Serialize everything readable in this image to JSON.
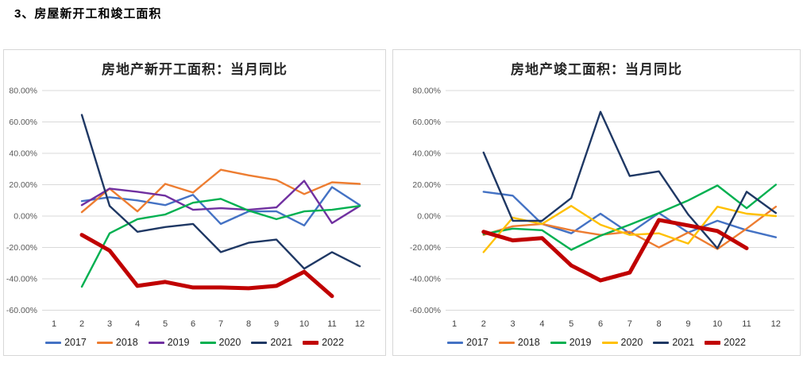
{
  "page": {
    "heading": "3、房屋新开工和竣工面积"
  },
  "axis": {
    "y_ticks": [
      "80.00%",
      "60.00%",
      "40.00%",
      "20.00%",
      "0.00%",
      "-20.00%",
      "-40.00%",
      "-60.00%"
    ],
    "x_ticks": [
      "1",
      "2",
      "3",
      "4",
      "5",
      "6",
      "7",
      "8",
      "9",
      "10",
      "11",
      "12"
    ]
  },
  "grid_color": "#d9d9d9",
  "tick_color": "#595959",
  "chart_data": [
    {
      "type": "line",
      "title": "房地产新开工面积：当月同比",
      "ylim": [
        -60,
        80
      ],
      "grid": true,
      "legend_position": "bottom",
      "x": [
        1,
        2,
        3,
        4,
        5,
        6,
        7,
        8,
        9,
        10,
        11,
        12
      ],
      "start_month": 2,
      "series": [
        {
          "name": "2017",
          "color": "#4472C4",
          "width": 2.4,
          "values": [
            9.5,
            12,
            10,
            7,
            13.5,
            -5,
            3,
            3,
            -6,
            18.5,
            7
          ]
        },
        {
          "name": "2018",
          "color": "#ED7D31",
          "width": 2.4,
          "values": [
            2.5,
            17.5,
            3,
            20.5,
            15,
            29.5,
            26,
            23,
            14,
            21.5,
            20.5
          ]
        },
        {
          "name": "2019",
          "color": "#7030A0",
          "width": 2.4,
          "values": [
            7,
            17.5,
            15.5,
            13,
            4,
            5,
            4,
            5.5,
            22.5,
            -4.5,
            6.5
          ]
        },
        {
          "name": "2020",
          "color": "#00B050",
          "width": 2.4,
          "values": [
            -45,
            -11,
            -2,
            1,
            8.5,
            11,
            3.5,
            -2,
            3,
            4,
            6.5
          ]
        },
        {
          "name": "2021",
          "color": "#1F3864",
          "width": 2.4,
          "values": [
            64.5,
            6.5,
            -10,
            -7,
            -5,
            -23,
            -17,
            -15,
            -33.5,
            -23,
            -32
          ]
        },
        {
          "name": "2022",
          "color": "#C00000",
          "width": 5,
          "values": [
            -12,
            -22,
            -44.5,
            -42,
            -45.5,
            -45.5,
            -46,
            -44.5,
            -35.5,
            -51,
            null
          ]
        }
      ]
    },
    {
      "type": "line",
      "title": "房地产竣工面积：当月同比",
      "ylim": [
        -60,
        80
      ],
      "grid": true,
      "legend_position": "bottom",
      "x": [
        1,
        2,
        3,
        4,
        5,
        6,
        7,
        8,
        9,
        10,
        11,
        12
      ],
      "start_month": 2,
      "series": [
        {
          "name": "2017",
          "color": "#4472C4",
          "width": 2.4,
          "values": [
            15.5,
            13,
            -5,
            -11,
            1.5,
            -11,
            2,
            -10.5,
            -3,
            -9,
            -13.5
          ]
        },
        {
          "name": "2018",
          "color": "#ED7D31",
          "width": 2.4,
          "values": [
            -12,
            -6.5,
            -5,
            -9,
            -12,
            -10,
            -20,
            -10.5,
            -21,
            -8,
            6
          ]
        },
        {
          "name": "2019",
          "color": "#00B050",
          "width": 2.4,
          "values": [
            -11.5,
            -8,
            -9,
            -21.5,
            -12.5,
            -5.5,
            2,
            10,
            19.5,
            5,
            20
          ]
        },
        {
          "name": "2020",
          "color": "#FFC000",
          "width": 2.4,
          "values": [
            -23,
            -1,
            -5,
            6.5,
            -5.5,
            -12,
            -11,
            -17.5,
            6,
            1.5,
            0
          ]
        },
        {
          "name": "2021",
          "color": "#1F3864",
          "width": 2.4,
          "values": [
            40.5,
            -3,
            -3,
            11.5,
            66.5,
            25.5,
            28.5,
            1,
            -20.5,
            15.5,
            2
          ]
        },
        {
          "name": "2022",
          "color": "#C00000",
          "width": 5,
          "values": [
            -10,
            -15.5,
            -14,
            -31.5,
            -41,
            -36,
            -2.5,
            -6,
            -9.5,
            -20.5,
            null
          ]
        }
      ]
    }
  ]
}
